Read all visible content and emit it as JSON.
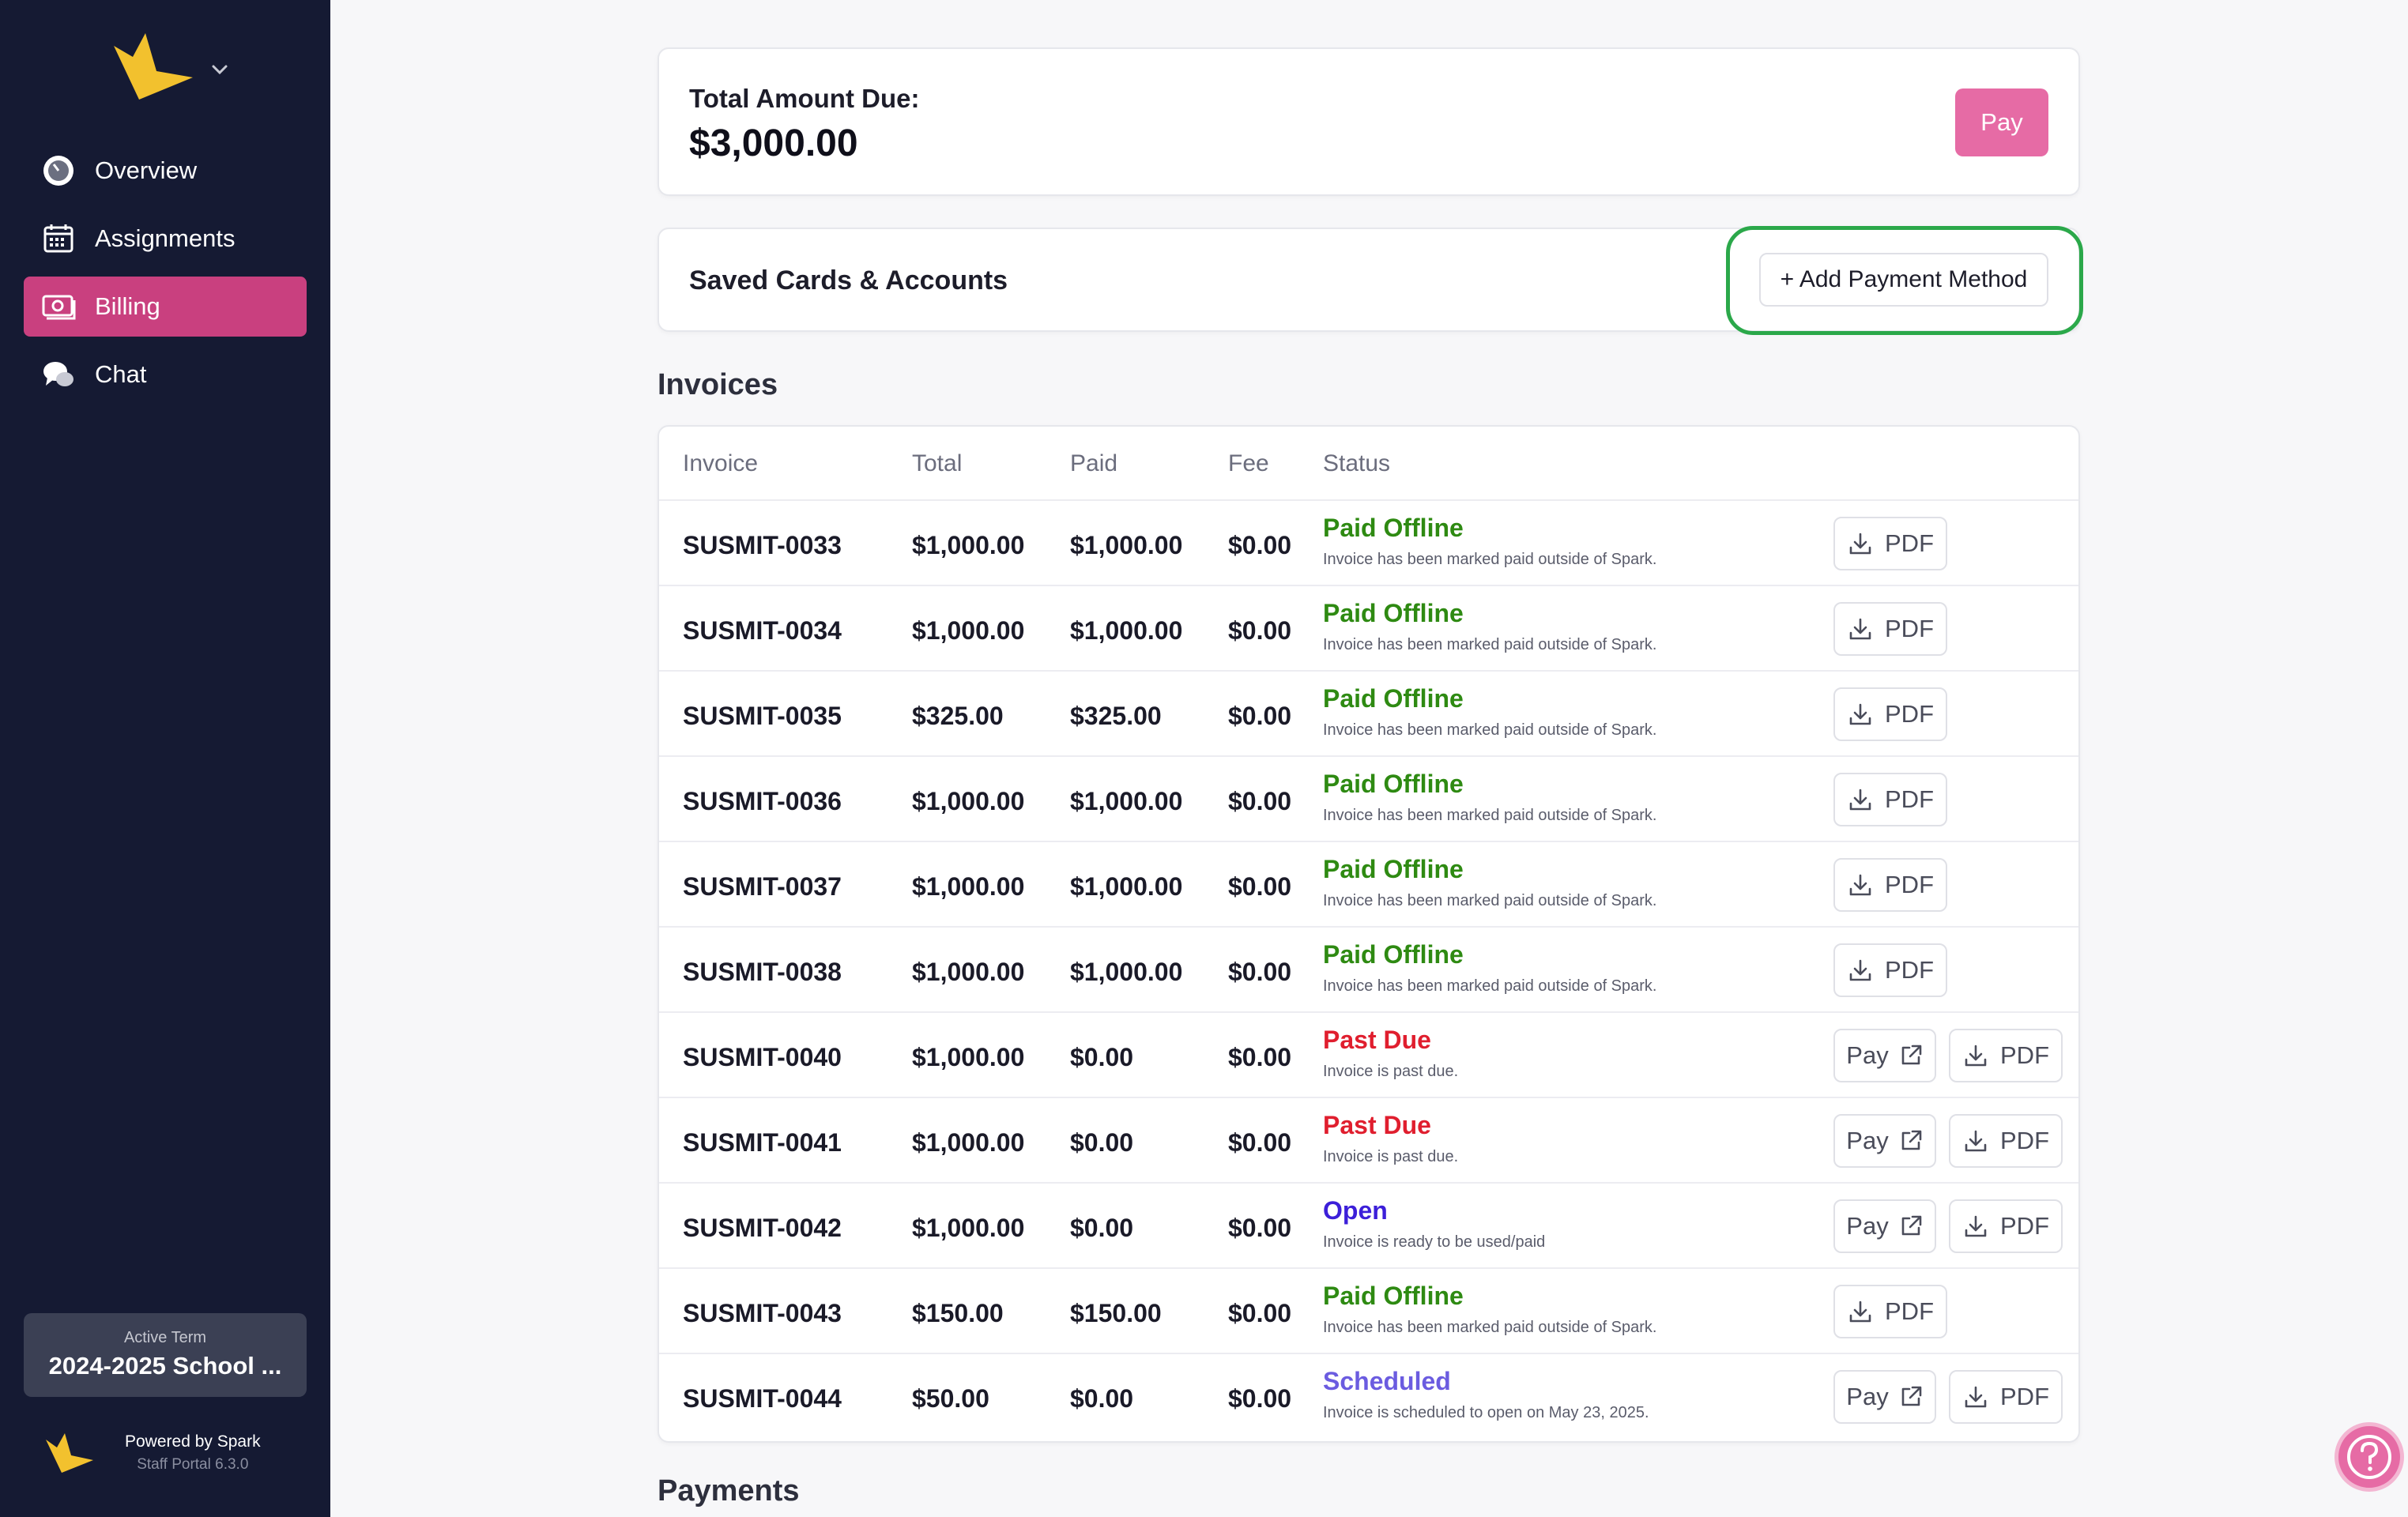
{
  "sidebar": {
    "items": [
      {
        "label": "Overview",
        "icon": "dashboard-gauge-icon"
      },
      {
        "label": "Assignments",
        "icon": "calendar-icon"
      },
      {
        "label": "Billing",
        "icon": "money-icon",
        "active": true
      },
      {
        "label": "Chat",
        "icon": "chat-bubbles-icon"
      }
    ],
    "term": {
      "label": "Active Term",
      "value": "2024-2025 School ..."
    },
    "powered": {
      "line1": "Powered by Spark",
      "line2": "Staff Portal 6.3.0"
    }
  },
  "summary": {
    "label": "Total Amount Due:",
    "amount": "$3,000.00",
    "pay_label": "Pay"
  },
  "saved": {
    "title": "Saved Cards & Accounts",
    "add_label": "+ Add Payment Method"
  },
  "invoices": {
    "title": "Invoices",
    "columns": {
      "invoice": "Invoice",
      "total": "Total",
      "paid": "Paid",
      "fee": "Fee",
      "status": "Status"
    },
    "pay_label": "Pay",
    "pdf_label": "PDF",
    "rows": [
      {
        "id": "SUSMIT-0033",
        "total": "$1,000.00",
        "paid": "$1,000.00",
        "fee": "$0.00",
        "status": "Paid Offline",
        "desc": "Invoice has been marked paid outside of Spark."
      },
      {
        "id": "SUSMIT-0034",
        "total": "$1,000.00",
        "paid": "$1,000.00",
        "fee": "$0.00",
        "status": "Paid Offline",
        "desc": "Invoice has been marked paid outside of Spark."
      },
      {
        "id": "SUSMIT-0035",
        "total": "$325.00",
        "paid": "$325.00",
        "fee": "$0.00",
        "status": "Paid Offline",
        "desc": "Invoice has been marked paid outside of Spark."
      },
      {
        "id": "SUSMIT-0036",
        "total": "$1,000.00",
        "paid": "$1,000.00",
        "fee": "$0.00",
        "status": "Paid Offline",
        "desc": "Invoice has been marked paid outside of Spark."
      },
      {
        "id": "SUSMIT-0037",
        "total": "$1,000.00",
        "paid": "$1,000.00",
        "fee": "$0.00",
        "status": "Paid Offline",
        "desc": "Invoice has been marked paid outside of Spark."
      },
      {
        "id": "SUSMIT-0038",
        "total": "$1,000.00",
        "paid": "$1,000.00",
        "fee": "$0.00",
        "status": "Paid Offline",
        "desc": "Invoice has been marked paid outside of Spark."
      },
      {
        "id": "SUSMIT-0040",
        "total": "$1,000.00",
        "paid": "$0.00",
        "fee": "$0.00",
        "status": "Past Due",
        "desc": "Invoice is past due."
      },
      {
        "id": "SUSMIT-0041",
        "total": "$1,000.00",
        "paid": "$0.00",
        "fee": "$0.00",
        "status": "Past Due",
        "desc": "Invoice is past due."
      },
      {
        "id": "SUSMIT-0042",
        "total": "$1,000.00",
        "paid": "$0.00",
        "fee": "$0.00",
        "status": "Open",
        "desc": "Invoice is ready to be used/paid"
      },
      {
        "id": "SUSMIT-0043",
        "total": "$150.00",
        "paid": "$150.00",
        "fee": "$0.00",
        "status": "Paid Offline",
        "desc": "Invoice has been marked paid outside of Spark."
      },
      {
        "id": "SUSMIT-0044",
        "total": "$50.00",
        "paid": "$0.00",
        "fee": "$0.00",
        "status": "Scheduled",
        "desc": "Invoice is scheduled to open on May 23, 2025."
      }
    ]
  },
  "payments": {
    "title": "Payments"
  },
  "colors": {
    "sidebar_bg": "#151a33",
    "accent": "#c9407f",
    "pay_button": "#e66ba5",
    "highlight": "#2ba84a",
    "paid_offline": "#2e8a12",
    "past_due": "#e01e2e",
    "open": "#3c1fd9",
    "scheduled": "#6b5ce0"
  }
}
